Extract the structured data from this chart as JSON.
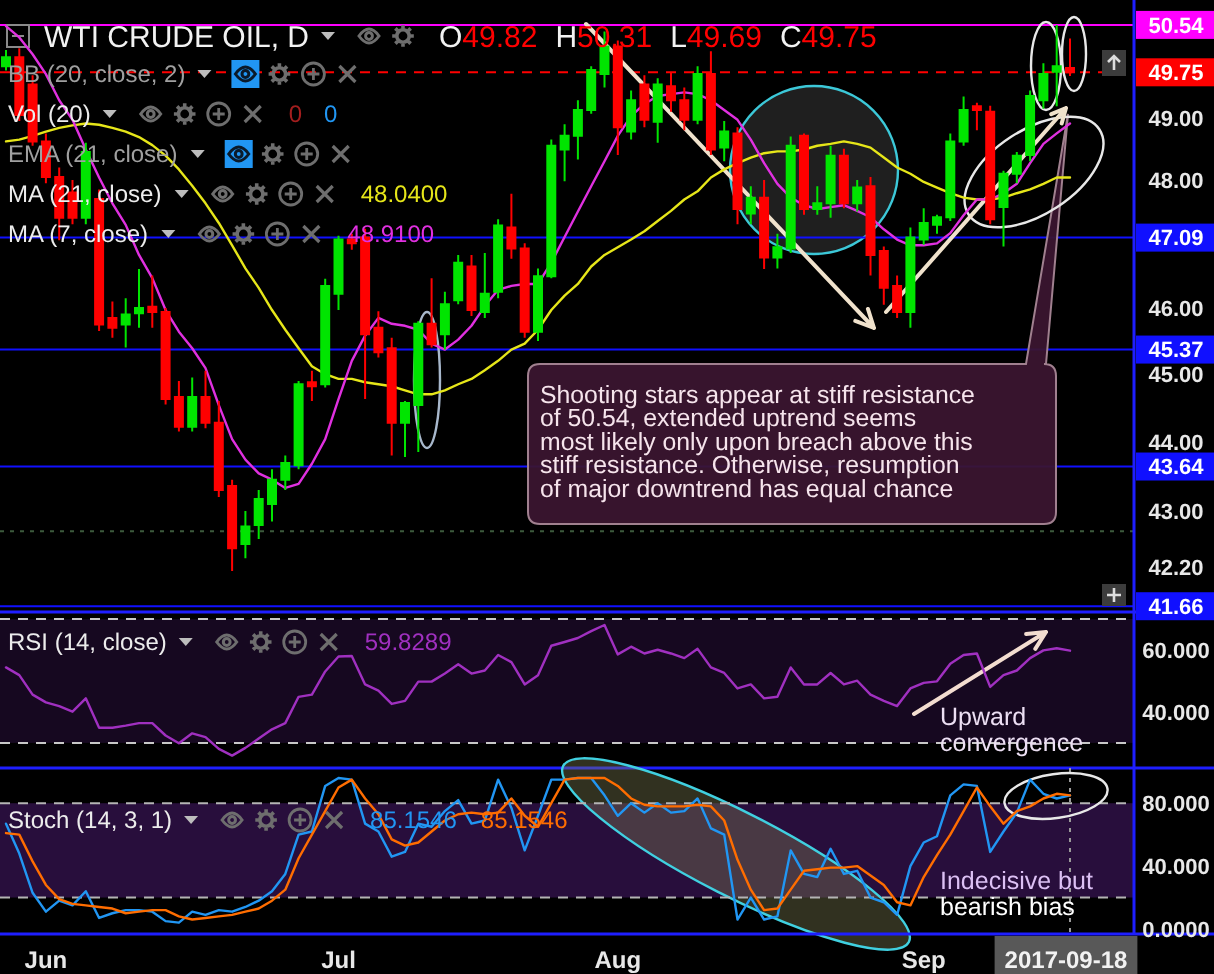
{
  "chart_data": [
    {
      "type": "candlestick",
      "title": "WTI CRUDE OIL, D",
      "categories": [
        null,
        null,
        null,
        null,
        null,
        null,
        null,
        null,
        null,
        null,
        null,
        null,
        null,
        null,
        null,
        null,
        null,
        null,
        null,
        null,
        null,
        null,
        null,
        null,
        null,
        null,
        null,
        null,
        null,
        null,
        null,
        null,
        null,
        null,
        null,
        null,
        null,
        null,
        null,
        null,
        null,
        null,
        null,
        null,
        null,
        null,
        null,
        null,
        null,
        null,
        null,
        null,
        null,
        null,
        null,
        null,
        null,
        null,
        null,
        null,
        null,
        null,
        null,
        null,
        null,
        null,
        null,
        null,
        null,
        null,
        null,
        null,
        null,
        null,
        null,
        null,
        null,
        null,
        null,
        null,
        null
      ],
      "ohlc": [
        [
          49.85,
          50.12,
          49.78,
          50.0
        ],
        [
          50.0,
          50.15,
          48.95,
          49.05
        ],
        [
          49.55,
          49.7,
          48.55,
          48.62
        ],
        [
          48.62,
          48.75,
          47.95,
          48.05
        ],
        [
          48.05,
          48.2,
          47.05,
          47.4
        ],
        [
          47.8,
          48.0,
          47.3,
          47.4
        ],
        [
          47.4,
          48.6,
          47.3,
          48.45
        ],
        [
          47.7,
          47.85,
          45.65,
          45.75
        ],
        [
          45.85,
          46.1,
          45.55,
          45.7
        ],
        [
          45.75,
          46.15,
          45.4,
          45.9
        ],
        [
          45.92,
          46.6,
          45.7,
          46.0
        ],
        [
          46.02,
          46.5,
          45.7,
          45.94
        ],
        [
          45.94,
          46.0,
          44.55,
          44.63
        ],
        [
          44.66,
          44.9,
          44.15,
          44.22
        ],
        [
          44.22,
          44.95,
          44.15,
          44.66
        ],
        [
          44.66,
          45.05,
          44.2,
          44.28
        ],
        [
          44.28,
          44.6,
          43.2,
          43.3
        ],
        [
          43.36,
          43.45,
          42.15,
          42.47
        ],
        [
          42.53,
          43.0,
          42.33,
          42.78
        ],
        [
          42.8,
          43.3,
          42.6,
          43.17
        ],
        [
          43.1,
          43.6,
          42.85,
          43.45
        ],
        [
          43.45,
          43.8,
          43.3,
          43.69
        ],
        [
          43.66,
          44.9,
          43.6,
          44.85
        ],
        [
          44.88,
          45.05,
          44.6,
          44.82
        ],
        [
          44.85,
          46.45,
          44.8,
          46.34
        ],
        [
          46.22,
          47.12,
          45.97,
          47.06
        ],
        [
          47.06,
          47.15,
          46.9,
          47.0
        ],
        [
          47.09,
          47.23,
          44.63,
          45.6
        ],
        [
          45.7,
          45.95,
          45.25,
          45.33
        ],
        [
          45.39,
          45.55,
          43.8,
          44.28
        ],
        [
          44.28,
          44.6,
          43.78,
          44.57
        ],
        [
          44.54,
          45.8,
          43.85,
          45.76
        ],
        [
          45.76,
          46.46,
          45.4,
          45.45
        ],
        [
          45.6,
          46.25,
          45.37,
          46.06
        ],
        [
          46.12,
          46.82,
          46.06,
          46.7
        ],
        [
          46.64,
          46.82,
          45.88,
          45.97
        ],
        [
          45.94,
          46.85,
          45.85,
          46.22
        ],
        [
          46.25,
          47.38,
          46.15,
          47.28
        ],
        [
          47.25,
          47.78,
          46.76,
          46.92
        ],
        [
          46.92,
          47.0,
          45.55,
          45.64
        ],
        [
          45.64,
          46.61,
          45.5,
          46.49
        ],
        [
          46.49,
          48.65,
          46.46,
          48.55
        ],
        [
          48.49,
          48.9,
          47.98,
          48.71
        ],
        [
          48.71,
          49.29,
          48.33,
          49.13
        ],
        [
          49.13,
          49.85,
          49.07,
          49.79
        ],
        [
          49.72,
          50.43,
          49.5,
          50.18
        ],
        [
          50.18,
          50.28,
          48.4,
          48.85
        ],
        [
          48.78,
          49.45,
          48.65,
          49.29
        ],
        [
          49.55,
          49.7,
          48.85,
          48.97
        ],
        [
          48.94,
          49.65,
          48.6,
          49.55
        ],
        [
          49.52,
          49.75,
          49.1,
          49.29
        ],
        [
          49.29,
          49.5,
          48.8,
          48.97
        ],
        [
          48.97,
          49.85,
          48.9,
          49.72
        ],
        [
          49.72,
          50.1,
          48.4,
          48.49
        ],
        [
          48.52,
          48.95,
          48.3,
          48.78
        ],
        [
          48.75,
          48.85,
          47.3,
          47.54
        ],
        [
          47.47,
          47.9,
          47.3,
          47.72
        ],
        [
          47.72,
          48.0,
          46.6,
          46.78
        ],
        [
          46.78,
          47.15,
          46.61,
          46.94
        ],
        [
          46.92,
          48.7,
          46.85,
          48.55
        ],
        [
          48.71,
          48.75,
          47.45,
          47.54
        ],
        [
          47.54,
          47.9,
          47.45,
          47.63
        ],
        [
          47.63,
          48.55,
          47.4,
          48.39
        ],
        [
          48.39,
          48.5,
          47.55,
          47.63
        ],
        [
          47.63,
          48.0,
          47.5,
          47.88
        ],
        [
          47.9,
          48.05,
          46.5,
          46.82
        ],
        [
          46.88,
          46.95,
          46.05,
          46.31
        ],
        [
          46.34,
          46.5,
          45.85,
          45.94
        ],
        [
          45.94,
          47.25,
          45.7,
          47.09
        ],
        [
          47.06,
          47.55,
          46.98,
          47.32
        ],
        [
          47.29,
          47.45,
          47.15,
          47.41
        ],
        [
          47.41,
          48.75,
          47.35,
          48.62
        ],
        [
          48.62,
          49.35,
          48.55,
          49.13
        ],
        [
          49.19,
          49.25,
          48.8,
          49.13
        ],
        [
          49.1,
          49.2,
          47.3,
          47.38
        ],
        [
          47.57,
          48.15,
          46.95,
          48.1
        ],
        [
          48.1,
          48.45,
          47.95,
          48.39
        ],
        [
          48.4,
          49.45,
          48.3,
          49.36
        ],
        [
          49.29,
          49.9,
          49.15,
          49.72
        ],
        [
          49.76,
          50.54,
          49.19,
          49.85
        ],
        [
          49.82,
          50.31,
          49.69,
          49.75
        ]
      ],
      "colors": [
        "#00e500",
        "#ff0000",
        "#ff0000",
        "#ff0000",
        "#ff0000",
        "#ff0000",
        "#00e500",
        "#ff0000",
        "#ff0000",
        "#00e500",
        "#00e500",
        "#ff0000",
        "#ff0000",
        "#ff0000",
        "#00e500",
        "#ff0000",
        "#ff0000",
        "#ff0000",
        "#00e500",
        "#00e500",
        "#00e500",
        "#00e500",
        "#00e500",
        "#ff0000",
        "#00e500",
        "#00e500",
        "#ff0000",
        "#ff0000",
        "#ff0000",
        "#ff0000",
        "#00e500",
        "#00e500",
        "#ff0000",
        "#00e500",
        "#00e500",
        "#ff0000",
        "#00e500",
        "#00e500",
        "#ff0000",
        "#ff0000",
        "#00e500",
        "#00e500",
        "#00e500",
        "#00e500",
        "#00e500",
        "#00e500",
        "#ff0000",
        "#00e500",
        "#ff0000",
        "#00e500",
        "#ff0000",
        "#ff0000",
        "#00e500",
        "#ff0000",
        "#00e500",
        "#ff0000",
        "#00e500",
        "#ff0000",
        "#00e500",
        "#00e500",
        "#ff0000",
        "#00e500",
        "#00e500",
        "#ff0000",
        "#00e500",
        "#ff0000",
        "#ff0000",
        "#ff0000",
        "#00e500",
        "#00e500",
        "#00e500",
        "#00e500",
        "#00e500",
        "#ff0000",
        "#ff0000",
        "#00e500",
        "#00e500",
        "#00e500",
        "#00e500",
        "#00e500",
        "#ff0000"
      ],
      "series": [
        {
          "type": "line",
          "color": "#e6e619",
          "values": [
            48.62,
            48.65,
            48.71,
            48.78,
            48.84,
            48.88,
            48.91,
            48.89,
            48.84,
            48.78,
            48.69,
            48.56,
            48.39,
            48.17,
            47.91,
            47.63,
            47.32,
            46.97,
            46.61,
            46.31,
            45.97,
            45.67,
            45.39,
            45.12,
            45.0,
            44.93,
            44.93,
            44.88,
            44.85,
            44.82,
            44.76,
            44.7,
            44.7,
            44.76,
            44.85,
            44.93,
            45.06,
            45.2,
            45.37,
            45.46,
            45.67,
            45.97,
            46.19,
            46.37,
            46.64,
            46.82,
            46.94,
            47.06,
            47.19,
            47.35,
            47.51,
            47.69,
            47.82,
            48.04,
            48.17,
            48.27,
            48.36,
            48.43,
            48.46,
            48.46,
            48.49,
            48.55,
            48.58,
            48.62,
            48.58,
            48.52,
            48.36,
            48.2,
            48.1,
            47.97,
            47.88,
            47.79,
            47.72,
            47.69,
            47.69,
            47.72,
            47.79,
            47.85,
            47.94,
            48.04,
            48.04
          ]
        },
        {
          "type": "line",
          "color": "#e030e0",
          "values": [
            50.52,
            50.33,
            50.05,
            49.72,
            49.29,
            48.97,
            48.49,
            48.04,
            47.63,
            47.29,
            46.82,
            46.46,
            45.97,
            45.64,
            45.39,
            45.09,
            44.54,
            44.04,
            43.74,
            43.54,
            43.45,
            43.33,
            43.39,
            43.68,
            44.04,
            44.63,
            45.2,
            45.58,
            45.85,
            45.76,
            45.73,
            45.67,
            45.46,
            45.37,
            45.52,
            45.73,
            46.03,
            46.28,
            46.34,
            46.37,
            46.37,
            46.7,
            47.1,
            47.5,
            47.9,
            48.3,
            48.71,
            49.03,
            49.23,
            49.36,
            49.39,
            49.42,
            49.39,
            49.29,
            49.13,
            48.97,
            48.65,
            48.27,
            47.94,
            47.72,
            47.6,
            47.54,
            47.57,
            47.6,
            47.51,
            47.41,
            47.22,
            47.06,
            46.97,
            46.97,
            47.0,
            47.16,
            47.44,
            47.69,
            47.69,
            47.79,
            47.94,
            48.27,
            48.58,
            48.75,
            48.91
          ]
        }
      ],
      "ylim": [
        41.58,
        50.96
      ],
      "log": "y",
      "yticks": [
        {
          "value": 42.2,
          "label": "42.20"
        },
        {
          "value": 43,
          "label": "43.00"
        },
        {
          "value": 44,
          "label": "44.00"
        },
        {
          "value": 45,
          "label": "45.00"
        },
        {
          "value": 46,
          "label": "46.00"
        },
        {
          "value": 48,
          "label": "48.00"
        },
        {
          "value": 49,
          "label": "49.00"
        }
      ],
      "ref_lines": [
        {
          "axis": "y",
          "value": 50.54,
          "label": "50.54",
          "color": "#ff00ff"
        },
        {
          "axis": "y",
          "value": 49.75,
          "label": "49.75",
          "color": "#ff0000",
          "line_style": "dashed"
        },
        {
          "axis": "y",
          "value": 47.09,
          "label": "47.09",
          "color": "#1010ff"
        },
        {
          "axis": "y",
          "value": 45.37,
          "label": "45.37",
          "color": "#1010ff"
        },
        {
          "axis": "y",
          "value": 43.64,
          "label": "43.64",
          "color": "#1010ff"
        },
        {
          "axis": "y",
          "value": 42.71,
          "color": "#3c5a3c",
          "line_style": "dotted"
        },
        {
          "axis": "y",
          "value": 41.66,
          "label": "41.66",
          "color": "#1010ff"
        }
      ],
      "annotations": [
        "O49.82 H50.31 L49.69 C49.75",
        "BB (20, close, 2)",
        "Vol (20)",
        "0 0",
        "EMA (21, close)",
        "MA (21, close)",
        "48.0400",
        "MA (7, close)",
        "48.9100",
        "Shooting stars appear at stiff resistance\nof 50.54, extended uptrend seems\nmost likely only upon breach above this\nstiff resistance. Otherwise, resumption\nof major downtrend has equal chance"
      ],
      "tick_labels": "y"
    },
    {
      "type": "line",
      "categories": [
        null,
        null,
        null,
        null,
        null,
        null,
        null,
        null,
        null,
        null,
        null,
        null,
        null,
        null,
        null,
        null,
        null,
        null,
        null,
        null,
        null,
        null,
        null,
        null,
        null,
        null,
        null,
        null,
        null,
        null,
        null,
        null,
        null,
        null,
        null,
        null,
        null,
        null,
        null,
        null,
        null,
        null,
        null,
        null,
        null,
        null,
        null,
        null,
        null,
        null,
        null,
        null,
        null,
        null,
        null,
        null,
        null,
        null,
        null,
        null,
        null,
        null,
        null,
        null,
        null,
        null,
        null,
        null,
        null,
        null,
        null,
        null,
        null,
        null,
        null,
        null,
        null,
        null,
        null,
        null,
        null
      ],
      "series": [
        {
          "color": "#a030c0",
          "values": [
            54.4,
            51.9,
            45.6,
            43.1,
            41.9,
            40.1,
            44.4,
            34.9,
            34.9,
            35.6,
            36.4,
            36.4,
            32.4,
            29.9,
            33.1,
            31.9,
            28.1,
            25.9,
            28.4,
            31.4,
            34.4,
            36.4,
            44.9,
            45.6,
            53.1,
            57.9,
            58.1,
            48.9,
            46.9,
            42.6,
            43.6,
            49.8,
            49.8,
            52.4,
            55.4,
            52.4,
            53.4,
            58.4,
            56.1,
            48.9,
            51.9,
            61.4,
            62.6,
            63.9,
            66.1,
            68.1,
            58.6,
            61.1,
            58.9,
            60.1,
            58.9,
            57.4,
            60.4,
            54.4,
            52.6,
            47.6,
            48.9,
            44.4,
            44.9,
            54.4,
            48.9,
            48.9,
            52.6,
            48.9,
            50.1,
            45.6,
            43.6,
            41.9,
            47.6,
            49.4,
            49.9,
            55.6,
            58.4,
            58.9,
            48.1,
            51.9,
            53.4,
            57.4,
            59.9,
            60.6,
            59.8
          ]
        }
      ],
      "ylim": [
        21.9,
        72.3
      ],
      "yticks": [
        {
          "value": 40,
          "label": "40.000"
        },
        {
          "value": 60,
          "label": "60.000"
        }
      ],
      "bands": [
        {
          "axis": "y",
          "from": 30,
          "to": 70,
          "color": "#160820"
        }
      ],
      "ref_lines": [
        {
          "axis": "y",
          "value": 70,
          "color": "#c8c8c8",
          "line_style": "dashed"
        },
        {
          "axis": "y",
          "value": 30,
          "color": "#c8c8c8",
          "line_style": "dashed"
        }
      ],
      "annotations": [
        "RSI (14, close)",
        "59.8289",
        "Upward\nconvergence"
      ],
      "tick_labels": "y"
    },
    {
      "type": "line",
      "categories": [
        null,
        null,
        null,
        "Jun",
        null,
        null,
        null,
        null,
        null,
        null,
        null,
        null,
        null,
        null,
        null,
        null,
        null,
        null,
        null,
        null,
        null,
        null,
        null,
        null,
        null,
        "Jul",
        null,
        null,
        null,
        null,
        null,
        null,
        null,
        null,
        null,
        null,
        null,
        null,
        null,
        null,
        null,
        null,
        null,
        null,
        null,
        null,
        "Aug",
        null,
        null,
        null,
        null,
        null,
        null,
        null,
        null,
        null,
        null,
        null,
        null,
        null,
        null,
        null,
        null,
        null,
        null,
        null,
        null,
        null,
        null,
        "Sep",
        null,
        null,
        null,
        null,
        null,
        null,
        null,
        null,
        null,
        null,
        "2017-09-18"
      ],
      "series": [
        {
          "color": "#2196f3",
          "values": [
            67,
            48,
            23,
            11,
            18,
            15,
            24,
            7,
            10,
            12,
            12,
            11,
            5,
            4,
            11,
            9,
            12,
            11,
            14,
            18,
            24,
            35,
            60,
            62,
            91,
            96,
            95,
            67,
            62,
            46,
            49,
            67,
            65,
            75,
            82,
            67,
            69,
            95,
            77,
            50,
            72,
            95,
            95,
            96,
            96,
            85,
            72,
            80,
            74,
            80,
            74,
            75,
            83,
            64,
            60,
            6,
            20,
            6,
            8,
            50,
            35,
            33,
            51,
            35,
            37,
            20,
            17,
            9,
            40,
            55,
            59,
            85,
            92,
            91,
            49,
            62,
            74,
            95,
            86,
            83,
            85
          ]
        },
        {
          "color": "#ff6d00",
          "values": [
            61,
            60,
            43,
            28,
            19,
            16,
            15,
            14,
            13,
            10,
            11,
            12,
            12,
            8,
            6,
            7,
            8,
            9,
            11,
            13,
            18,
            25,
            45,
            60,
            75,
            90,
            95,
            83,
            73,
            57,
            53,
            55,
            62,
            69,
            73,
            74,
            73,
            74,
            83,
            72,
            65,
            80,
            95,
            96,
            96,
            96,
            91,
            83,
            79,
            78,
            78,
            78,
            79,
            78,
            69,
            44,
            25,
            12,
            13,
            25,
            37,
            38,
            39,
            39,
            40,
            34,
            28,
            17,
            15,
            33,
            47,
            60,
            75,
            90,
            78,
            67,
            75,
            78,
            83,
            86,
            85
          ]
        }
      ],
      "ylim": [
        -3.2,
        102.4
      ],
      "yticks": [
        {
          "value": 0,
          "label": "0.0000"
        },
        {
          "value": 40,
          "label": "40.000"
        },
        {
          "value": 80,
          "label": "80.000"
        }
      ],
      "bands": [
        {
          "axis": "y",
          "from": 20,
          "to": 80,
          "color": "#280e3c"
        }
      ],
      "ref_lines": [
        {
          "axis": "y",
          "value": 80,
          "color": "#b4b4b4",
          "line_style": "dashed"
        },
        {
          "axis": "y",
          "value": 20,
          "color": "#b4b4b4",
          "line_style": "dashed"
        },
        {
          "axis": "x",
          "value": "2017-09-18",
          "color": "#9a9a9a",
          "line_style": "dotted"
        }
      ],
      "annotations": [
        "Stoch (14, 3, 1)",
        "85.1546",
        "85.1546",
        "Indecisive but\nbearish bias"
      ]
    }
  ]
}
